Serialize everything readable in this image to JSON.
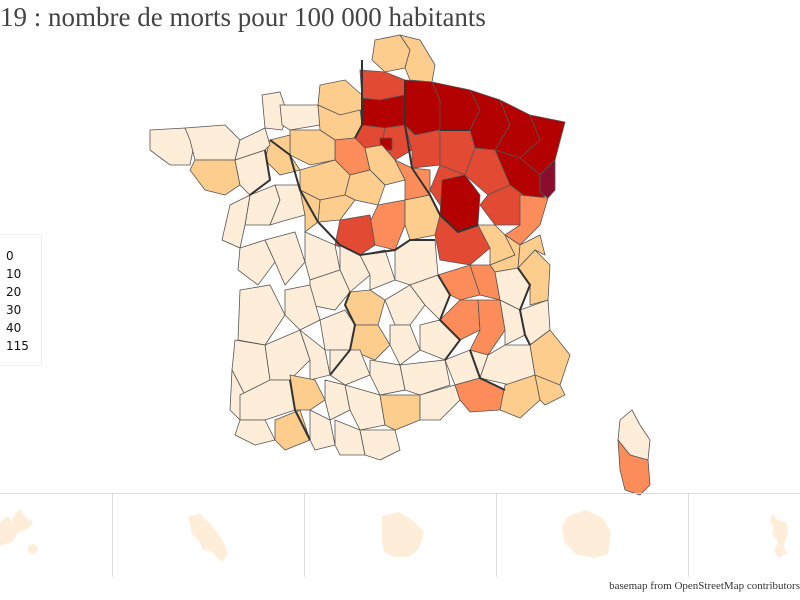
{
  "title": "19 : nombre de morts pour 100 000 habitants",
  "legend": {
    "items": [
      "0",
      "10",
      "20",
      "30",
      "40",
      "115"
    ]
  },
  "colors": {
    "c0": "#feedd8",
    "c10": "#fdcd8e",
    "c20": "#fc8d5a",
    "c30": "#e34a33",
    "c40": "#b30000",
    "c115": "#8b0d2e",
    "border": "#333333"
  },
  "insets": [
    "Guadeloupe",
    "Martinique",
    "Guyane",
    "La Réunion",
    "Mayotte"
  ],
  "attribution": "basemap from OpenStreetMap contributors"
}
